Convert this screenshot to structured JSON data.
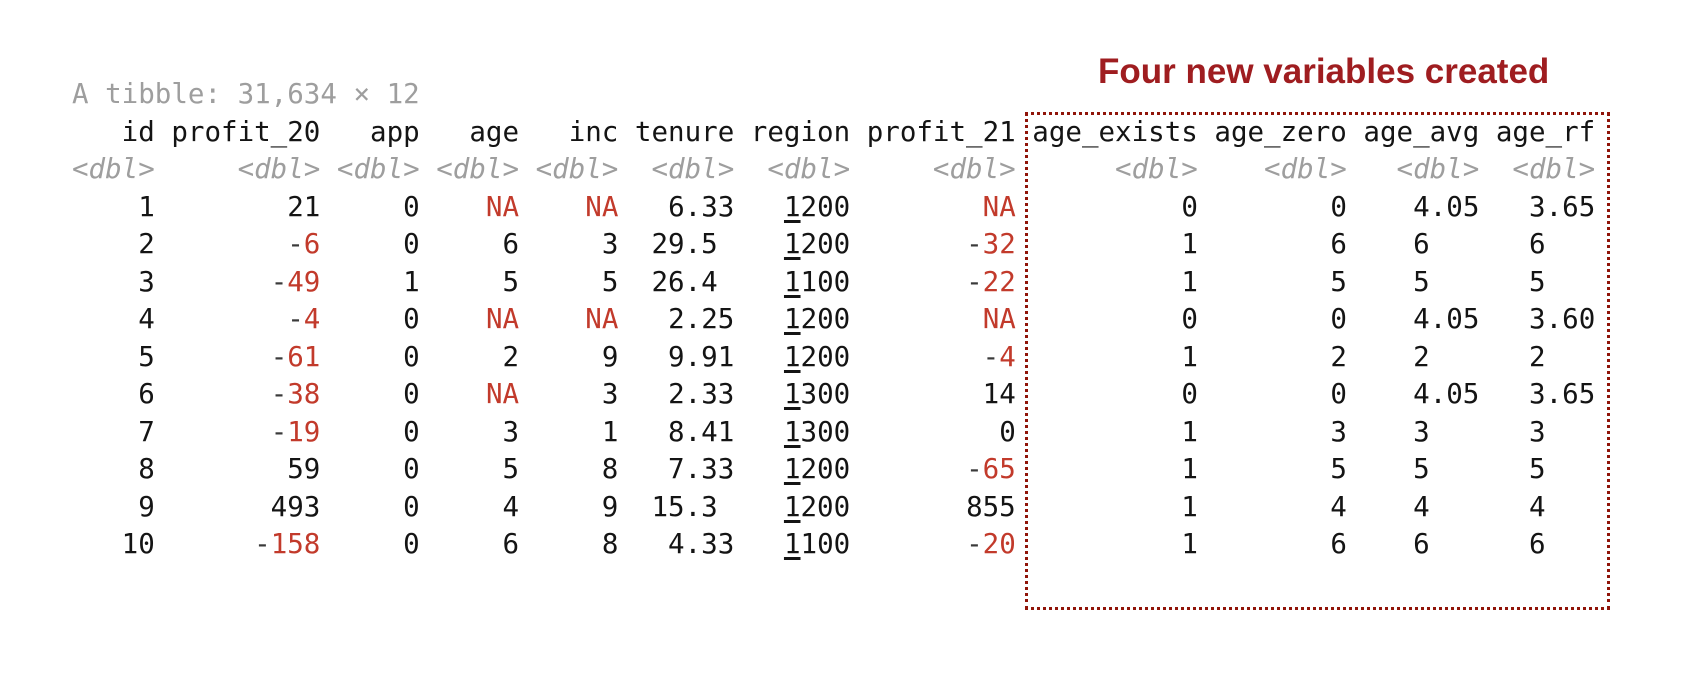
{
  "annotation": {
    "label": "Four new variables created",
    "color": "#9f1d20"
  },
  "colors": {
    "text": "#141414",
    "muted_gray": "#9e9e9e",
    "negative_red": "#c23a2b",
    "na_red": "#c23a2b",
    "minus_dark": "#3a3a3a",
    "box_border_red": "#901409"
  },
  "table": {
    "summary": "A tibble: 31,634 × 12",
    "columns": [
      {
        "name": "id",
        "width": 5,
        "type": "<dbl>"
      },
      {
        "name": "profit_20",
        "width": 9,
        "type": "<dbl>"
      },
      {
        "name": "app",
        "width": 5,
        "type": "<dbl>"
      },
      {
        "name": "age",
        "width": 5,
        "type": "<dbl>"
      },
      {
        "name": "inc",
        "width": 5,
        "type": "<dbl>"
      },
      {
        "name": "tenure",
        "width": 6,
        "type": "<dbl>"
      },
      {
        "name": "region",
        "width": 6,
        "type": "<dbl>",
        "underline_first_digit": true
      },
      {
        "name": "profit_21",
        "width": 9,
        "type": "<dbl>"
      },
      {
        "name": "age_exists",
        "width": 10,
        "type": "<dbl>"
      },
      {
        "name": "age_zero",
        "width": 8,
        "type": "<dbl>"
      },
      {
        "name": "age_avg",
        "width": 7,
        "type": "<dbl>"
      },
      {
        "name": "age_rf",
        "width": 6,
        "type": "<dbl>"
      }
    ],
    "rows": [
      [
        "1",
        "21",
        "0",
        "NA",
        "NA",
        "6.33",
        "1200",
        "NA",
        "0",
        "0",
        "4.05",
        "3.65"
      ],
      [
        "2",
        "-6",
        "0",
        "6",
        "3",
        "29.5 ",
        "1200",
        "-32",
        "1",
        "6",
        "6   ",
        "6   "
      ],
      [
        "3",
        "-49",
        "1",
        "5",
        "5",
        "26.4 ",
        "1100",
        "-22",
        "1",
        "5",
        "5   ",
        "5   "
      ],
      [
        "4",
        "-4",
        "0",
        "NA",
        "NA",
        "2.25",
        "1200",
        "NA",
        "0",
        "0",
        "4.05",
        "3.60"
      ],
      [
        "5",
        "-61",
        "0",
        "2",
        "9",
        "9.91",
        "1200",
        "-4",
        "1",
        "2",
        "2   ",
        "2   "
      ],
      [
        "6",
        "-38",
        "0",
        "NA",
        "3",
        "2.33",
        "1300",
        "14",
        "0",
        "0",
        "4.05",
        "3.65"
      ],
      [
        "7",
        "-19",
        "0",
        "3",
        "1",
        "8.41",
        "1300",
        "0",
        "1",
        "3",
        "3   ",
        "3   "
      ],
      [
        "8",
        "59",
        "0",
        "5",
        "8",
        "7.33",
        "1200",
        "-65",
        "1",
        "5",
        "5   ",
        "5   "
      ],
      [
        "9",
        "493",
        "0",
        "4",
        "9",
        "15.3 ",
        "1200",
        "855",
        "1",
        "4",
        "4   ",
        "4   "
      ],
      [
        "10",
        "-158",
        "0",
        "6",
        "8",
        "4.33",
        "1100",
        "-20",
        "1",
        "6",
        "6   ",
        "6   "
      ]
    ]
  }
}
